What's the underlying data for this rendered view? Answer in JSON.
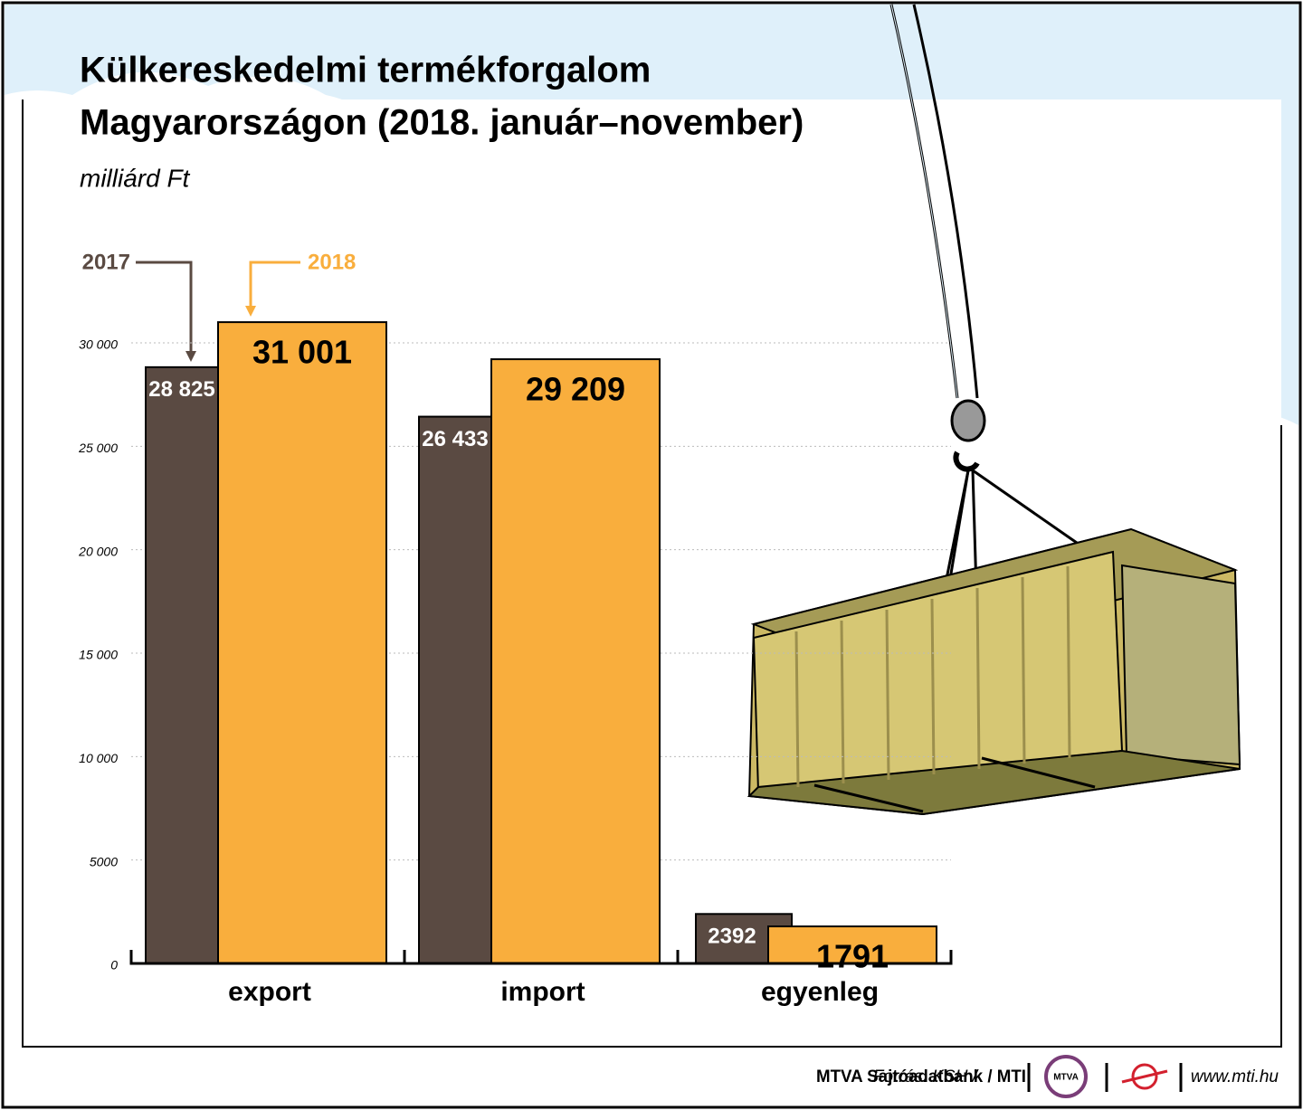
{
  "chart_data": {
    "type": "bar",
    "title": [
      "Külkereskedelmi termékforgalom",
      "Magyarországon (2018. január–november)"
    ],
    "subtitle": "milliárd Ft",
    "categories": [
      "export",
      "import",
      "egyenleg"
    ],
    "series": [
      {
        "name": "2017",
        "color": "#5a4a42",
        "values": [
          28825,
          26433,
          2392
        ],
        "value_labels": [
          "28 825",
          "26 433",
          "2392"
        ]
      },
      {
        "name": "2018",
        "color": "#f9ae3d",
        "values": [
          31001,
          29209,
          1791
        ],
        "value_labels": [
          "31 001",
          "29 209",
          "1791"
        ]
      }
    ],
    "ylim": [
      0,
      30000
    ],
    "yticks": [
      0,
      5000,
      {
        "value": 10000,
        "label": "10 000"
      },
      {
        "value": 15000,
        "label": "15 000"
      },
      {
        "value": 20000,
        "label": "20 000"
      },
      {
        "value": 25000,
        "label": "25 000"
      },
      {
        "value": 30000,
        "label": "30 000"
      }
    ],
    "grid": true,
    "source": [
      "Forrás: KSH /",
      "MTVA Sajtóadatbank / MTI"
    ],
    "logo": "MTVA",
    "website": "www.mti.hu"
  }
}
